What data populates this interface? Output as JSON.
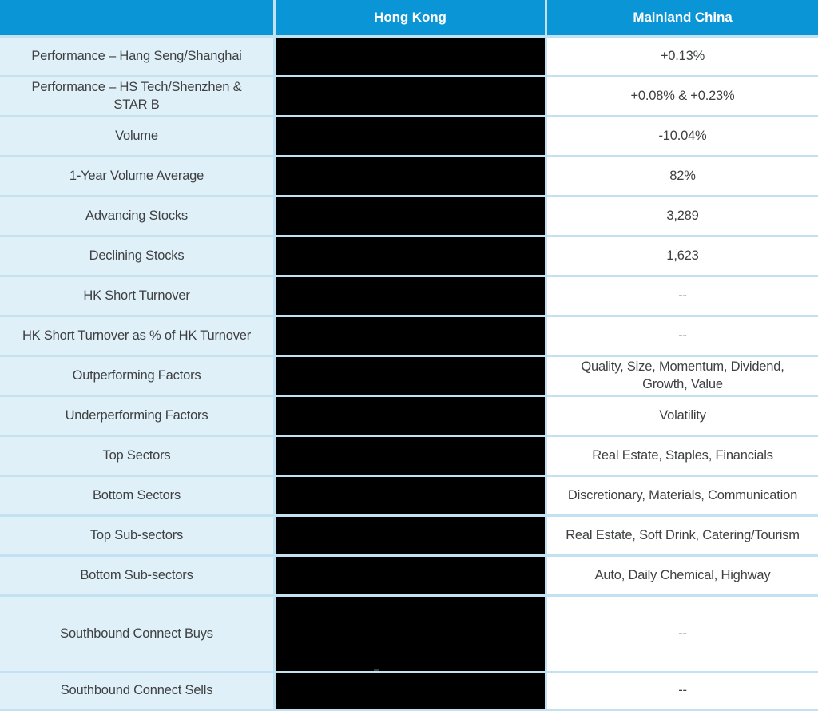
{
  "header": {
    "corner": "",
    "col_hong_kong": "Hong Kong",
    "col_mainland_china": "Mainland China"
  },
  "table": {
    "rows": [
      {
        "label": "Performance – Hang Seng/Shanghai",
        "hong_kong_redacted": true,
        "value": "+0.13%"
      },
      {
        "label": "Performance – HS Tech/Shenzhen & STAR B",
        "hong_kong_redacted": true,
        "value": "+0.08% & +0.23%"
      },
      {
        "label": "Volume",
        "hong_kong_redacted": true,
        "value": "-10.04%"
      },
      {
        "label": "1-Year Volume Average",
        "hong_kong_redacted": true,
        "value": "82%"
      },
      {
        "label": "Advancing Stocks",
        "hong_kong_redacted": true,
        "value": "3,289"
      },
      {
        "label": "Declining Stocks",
        "hong_kong_redacted": true,
        "value": "1,623"
      },
      {
        "label": "HK Short Turnover",
        "hong_kong_redacted": true,
        "value": "--"
      },
      {
        "label": "HK Short Turnover as % of HK Turnover",
        "hong_kong_redacted": true,
        "value": "--"
      },
      {
        "label": "Outperforming Factors",
        "hong_kong_redacted": true,
        "value": "Quality, Size, Momentum, Dividend, Growth, Value"
      },
      {
        "label": "Underperforming Factors",
        "hong_kong_redacted": true,
        "value": "Volatility"
      },
      {
        "label": "Top Sectors",
        "hong_kong_redacted": true,
        "value": "Real Estate, Staples, Financials"
      },
      {
        "label": "Bottom Sectors",
        "hong_kong_redacted": true,
        "value": "Discretionary, Materials, Communication"
      },
      {
        "label": "Top Sub-sectors",
        "hong_kong_redacted": true,
        "value": "Real Estate, Soft Drink, Catering/Tourism"
      },
      {
        "label": "Bottom Sub-sectors",
        "hong_kong_redacted": true,
        "value": "Auto, Daily Chemical, Highway"
      },
      {
        "label": "Southbound Connect Buys",
        "hong_kong_redacted": true,
        "value": "--"
      },
      {
        "label": "Southbound Connect Sells",
        "hong_kong_redacted": true,
        "value": "--"
      }
    ]
  },
  "colors": {
    "header_bg": "#0a95d6",
    "label_bg": "#dff0f8",
    "border": "#c2e2f1",
    "redaction": "#000000",
    "text": "#3e4042",
    "header_text": "#ffffff"
  }
}
